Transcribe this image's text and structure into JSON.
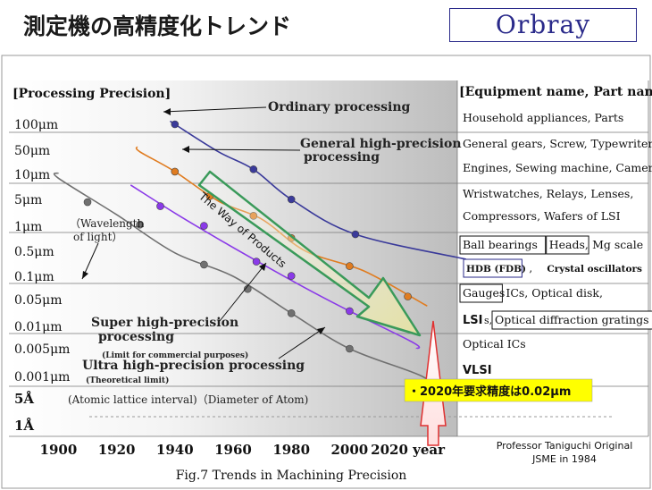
{
  "header": {
    "title": "測定機の高精度化トレンド",
    "logo": "Orbray"
  },
  "chart_data": {
    "type": "line",
    "title": "",
    "caption": "Fig.7  Trends in Machining Precision",
    "left_header": "[Processing Precision]",
    "right_header": "[Equipment name, Part name]",
    "xlabel_suffix": "year",
    "xlim": [
      1883,
      2037
    ],
    "x_ticks": [
      1900,
      1920,
      1940,
      1960,
      1980,
      2000,
      2020
    ],
    "y_tick_labels": [
      "100μm",
      "50μm",
      "10μm",
      "5μm",
      "1μm",
      "0.5μm",
      "0.1μm",
      "0.05μm",
      "0.01μm",
      "0.005μm",
      "0.001μm",
      "5Å",
      "1Å"
    ],
    "series": [
      {
        "name": "Ordinary processing",
        "color": "#3a3a9a",
        "x": [
          1940,
          1955,
          1967,
          1980,
          2002
        ],
        "y": [
          100,
          45,
          14,
          5,
          0.8
        ],
        "points": [
          1940,
          1967,
          1980,
          2002
        ],
        "start": [
          1939,
          120
        ],
        "end": [
          2040,
          0.3
        ]
      },
      {
        "name": "General high-precision processing",
        "color": "#e07c20",
        "x": [
          1928,
          1940,
          1955,
          1970,
          1985,
          2005,
          2025
        ],
        "y": [
          45,
          12,
          4.5,
          1.5,
          0.5,
          0.14,
          0.04
        ],
        "points": [
          1940,
          1952,
          1967,
          1980,
          2000,
          2020
        ],
        "start": [
          1927,
          55
        ],
        "end": [
          2025,
          0.04
        ]
      },
      {
        "name": "Super high-precision processing",
        "color": "#8a3ae8",
        "x": [
          1926,
          1940,
          1955,
          1970,
          1985,
          2000,
          2022
        ],
        "y": [
          7,
          2.2,
          0.7,
          0.22,
          0.07,
          0.025,
          0.006
        ],
        "points": [
          1935,
          1950,
          1968,
          1980,
          2000
        ],
        "start": [
          1926,
          7
        ],
        "end": [
          2023,
          0.005
        ]
      },
      {
        "name": "Ultra high-precision processing",
        "color": "#707070",
        "x": [
          1900,
          1920,
          1940,
          1960,
          1980,
          2000,
          2025
        ],
        "y": [
          9,
          2,
          0.45,
          0.1,
          0.022,
          0.005,
          0.001
        ],
        "points": [
          1910,
          1928,
          1950,
          1965,
          1980,
          2000
        ],
        "start": [
          1900,
          11
        ],
        "end": [
          2030,
          0.0006
        ]
      }
    ],
    "series_labels": {
      "ordinary": "Ordinary processing",
      "general_1": "General high-precision",
      "general_2": "processing",
      "super_1": "Super high-precision",
      "super_2": "processing",
      "super_note": "(Limit for commercial purposes)",
      "ultra": "Ultra high-precision processing",
      "ultra_note": "(Theoretical limit)"
    },
    "annotations": {
      "wavelength_1": "（Wavelength",
      "wavelength_2": "of light）",
      "atomic": "(Atomic lattice interval)（Diameter of Atom)",
      "way_of_products": "The Way of  Products",
      "requirement": "・2020年要求精度は0.02μm",
      "source_1": "Professor Taniguchi Original",
      "source_2": "JSME in 1984"
    },
    "equipment": [
      "Household appliances, Parts",
      "General gears, Screw, Typewriters",
      "Engines, Sewing machine, Camera",
      "Wristwatches, Relays, Lenses,",
      "Compressors, Wafers of LSI",
      {
        "boxed": [
          "Ball bearings",
          "Heads,"
        ],
        "plain": " Mg scale"
      },
      {
        "boxed": [
          "HDB (FDB)"
        ],
        "plain": "Crystal oscillators",
        "sep": " ,"
      },
      {
        "boxed": [
          "Gauges"
        ],
        "plain": " ICs, Optical disk,"
      },
      {
        "prefix": "LSI",
        "prefix_small": "s,",
        "boxed": [
          "Optical diffraction gratings"
        ]
      },
      "Optical ICs",
      "VLSI"
    ]
  }
}
